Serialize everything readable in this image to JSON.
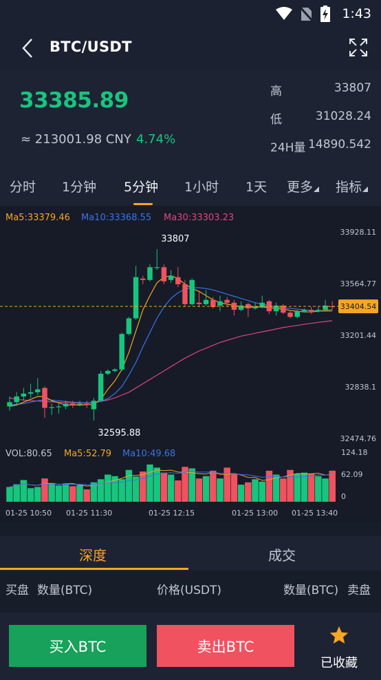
{
  "status_bar": {
    "time": "1:43"
  },
  "header": {
    "title": "BTC/USDT"
  },
  "ticker": {
    "last_price": "33385.89",
    "cny_value": "≈ 213001.98 CNY",
    "change_pct": "4.74%",
    "high_label": "高",
    "high_value": "33807",
    "low_label": "低",
    "low_value": "31028.24",
    "volume_label": "24H量",
    "volume_value": "14890.542"
  },
  "periods": {
    "items": [
      {
        "label": "分时"
      },
      {
        "label": "1分钟"
      },
      {
        "label": "5分钟"
      },
      {
        "label": "1小时"
      },
      {
        "label": "1天"
      },
      {
        "label": "更多"
      },
      {
        "label": "指标"
      }
    ],
    "active_index": 2
  },
  "colors": {
    "up": "#18c57e",
    "down": "#f0525f",
    "accent": "#f5a623",
    "ma5": "#f5a623",
    "ma10": "#3b73e6",
    "ma30": "#e0447f"
  },
  "chart_data": {
    "type": "candlestick",
    "ma_legend": {
      "ma5": "Ma5:33379.46",
      "ma10": "Ma10:33368.55",
      "ma30": "Ma30:33303.23"
    },
    "y_ticks": [
      "33928.11",
      "33564.77",
      "33201.44",
      "32838.1",
      "32474.76"
    ],
    "ylim": [
      32474.76,
      33928.11
    ],
    "current_price_label": "33404.54",
    "current_price": 33404.54,
    "max_label": "33807",
    "min_label": "32595.88",
    "x_ticks": [
      "01-25 10:50",
      "01-25 11:30",
      "01-25 12:15",
      "01-25 13:00",
      "01-25 13:40"
    ],
    "candles": [
      {
        "o": 32700,
        "c": 32730,
        "h": 32770,
        "l": 32670
      },
      {
        "o": 32730,
        "c": 32770,
        "h": 32800,
        "l": 32710
      },
      {
        "o": 32770,
        "c": 32790,
        "h": 32830,
        "l": 32740
      },
      {
        "o": 32790,
        "c": 32800,
        "h": 32860,
        "l": 32760
      },
      {
        "o": 32800,
        "c": 32820,
        "h": 32900,
        "l": 32780
      },
      {
        "o": 32830,
        "c": 32690,
        "h": 32840,
        "l": 32620
      },
      {
        "o": 32690,
        "c": 32695,
        "h": 32720,
        "l": 32640
      },
      {
        "o": 32695,
        "c": 32700,
        "h": 32720,
        "l": 32650
      },
      {
        "o": 32700,
        "c": 32720,
        "h": 32740,
        "l": 32680
      },
      {
        "o": 32720,
        "c": 32710,
        "h": 32740,
        "l": 32690
      },
      {
        "o": 32715,
        "c": 32720,
        "h": 32740,
        "l": 32700
      },
      {
        "o": 32720,
        "c": 32710,
        "h": 32740,
        "l": 32690
      },
      {
        "o": 32680,
        "c": 32740,
        "h": 32760,
        "l": 32600
      },
      {
        "o": 32740,
        "c": 32930,
        "h": 32950,
        "l": 32730
      },
      {
        "o": 32930,
        "c": 32950,
        "h": 32960,
        "l": 32920
      },
      {
        "o": 32950,
        "c": 32960,
        "h": 32970,
        "l": 32940
      },
      {
        "o": 32960,
        "c": 33210,
        "h": 33220,
        "l": 32950
      },
      {
        "o": 33210,
        "c": 33320,
        "h": 33330,
        "l": 33200
      },
      {
        "o": 33320,
        "c": 33610,
        "h": 33690,
        "l": 33310
      },
      {
        "o": 33600,
        "c": 33590,
        "h": 33620,
        "l": 33560
      },
      {
        "o": 33590,
        "c": 33680,
        "h": 33700,
        "l": 33580
      },
      {
        "o": 33680,
        "c": 33680,
        "h": 33807,
        "l": 33660
      },
      {
        "o": 33680,
        "c": 33580,
        "h": 33700,
        "l": 33560
      },
      {
        "o": 33590,
        "c": 33620,
        "h": 33660,
        "l": 33570
      },
      {
        "o": 33610,
        "c": 33560,
        "h": 33680,
        "l": 33540
      },
      {
        "o": 33560,
        "c": 33420,
        "h": 33590,
        "l": 33400
      },
      {
        "o": 33420,
        "c": 33590,
        "h": 33600,
        "l": 33410
      },
      {
        "o": 33430,
        "c": 33420,
        "h": 33510,
        "l": 33400
      },
      {
        "o": 33420,
        "c": 33450,
        "h": 33520,
        "l": 33410
      },
      {
        "o": 33450,
        "c": 33400,
        "h": 33470,
        "l": 33390
      },
      {
        "o": 33410,
        "c": 33440,
        "h": 33480,
        "l": 33370
      },
      {
        "o": 33450,
        "c": 33430,
        "h": 33470,
        "l": 33400
      },
      {
        "o": 33430,
        "c": 33380,
        "h": 33450,
        "l": 33340
      },
      {
        "o": 33380,
        "c": 33410,
        "h": 33440,
        "l": 33370
      },
      {
        "o": 33420,
        "c": 33390,
        "h": 33430,
        "l": 33330
      },
      {
        "o": 33390,
        "c": 33400,
        "h": 33430,
        "l": 33380
      },
      {
        "o": 33400,
        "c": 33430,
        "h": 33480,
        "l": 33390
      },
      {
        "o": 33440,
        "c": 33370,
        "h": 33450,
        "l": 33350
      },
      {
        "o": 33370,
        "c": 33410,
        "h": 33430,
        "l": 33340
      },
      {
        "o": 33410,
        "c": 33360,
        "h": 33420,
        "l": 33350
      },
      {
        "o": 33360,
        "c": 33330,
        "h": 33370,
        "l": 33320
      },
      {
        "o": 33330,
        "c": 33370,
        "h": 33380,
        "l": 33320
      },
      {
        "o": 33370,
        "c": 33380,
        "h": 33390,
        "l": 33360
      },
      {
        "o": 33380,
        "c": 33370,
        "h": 33400,
        "l": 33350
      },
      {
        "o": 33370,
        "c": 33380,
        "h": 33400,
        "l": 33360
      },
      {
        "o": 33380,
        "c": 33410,
        "h": 33450,
        "l": 33370
      },
      {
        "o": 33405,
        "c": 33404,
        "h": 33440,
        "l": 33380
      }
    ],
    "ma5_values": [
      32700,
      32710,
      32730,
      32750,
      32770,
      32770,
      32740,
      32725,
      32710,
      32710,
      32710,
      32712,
      32715,
      32750,
      32820,
      32880,
      32960,
      33080,
      33230,
      33380,
      33480,
      33570,
      33610,
      33620,
      33600,
      33560,
      33530,
      33510,
      33480,
      33450,
      33430,
      33420,
      33410,
      33400,
      33400,
      33400,
      33400,
      33395,
      33390,
      33385,
      33375,
      33370,
      33365,
      33365,
      33370,
      33375,
      33379
    ],
    "ma10_values": [
      32710,
      32715,
      32720,
      32730,
      32740,
      32745,
      32745,
      32740,
      32735,
      32730,
      32728,
      32725,
      32725,
      32735,
      32755,
      32790,
      32840,
      32920,
      33010,
      33120,
      33220,
      33320,
      33400,
      33460,
      33500,
      33525,
      33535,
      33535,
      33530,
      33520,
      33505,
      33490,
      33475,
      33460,
      33445,
      33430,
      33420,
      33410,
      33400,
      33395,
      33390,
      33385,
      33380,
      33375,
      33372,
      33370,
      33369
    ],
    "ma30_values": [
      32760,
      32750,
      32745,
      32740,
      32738,
      32735,
      32732,
      32730,
      32728,
      32726,
      32725,
      32726,
      32728,
      32735,
      32745,
      32760,
      32780,
      32800,
      32830,
      32860,
      32890,
      32920,
      32950,
      32980,
      33010,
      33040,
      33065,
      33090,
      33110,
      33130,
      33150,
      33165,
      33180,
      33195,
      33205,
      33215,
      33225,
      33235,
      33245,
      33255,
      33263,
      33270,
      33278,
      33285,
      33292,
      33298,
      33303
    ],
    "volume": {
      "legend": "VOL:80.65",
      "ma5_legend": "Ma5:52.79",
      "ma10_legend": "Ma10:49.68",
      "y_ticks": [
        "124.18",
        "62.09",
        "0"
      ],
      "ylim": [
        0,
        124.18
      ],
      "values": [
        38,
        45,
        56,
        35,
        38,
        60,
        48,
        42,
        44,
        40,
        43,
        32,
        50,
        58,
        70,
        66,
        58,
        82,
        65,
        78,
        96,
        88,
        75,
        70,
        55,
        90,
        86,
        60,
        66,
        80,
        60,
        88,
        72,
        44,
        50,
        58,
        52,
        80,
        70,
        60,
        82,
        72,
        75,
        72,
        66,
        60,
        80
      ]
    }
  },
  "tabs": {
    "depth": "深度",
    "trades": "成交",
    "active_index": 0
  },
  "depth_header": {
    "bid": "买盘",
    "bid_qty": "数量(BTC)",
    "price": "价格(USDT)",
    "ask_qty": "数量(BTC)",
    "ask": "卖盘"
  },
  "bottom": {
    "buy_label": "买入BTC",
    "sell_label": "卖出BTC",
    "favorite_label": "已收藏"
  }
}
